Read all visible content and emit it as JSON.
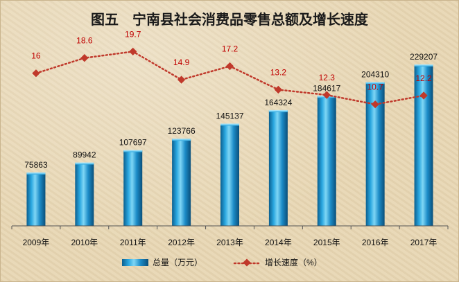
{
  "chart_data": {
    "type": "bar",
    "title": "图五　宁南县社会消费品零售总额及增长速度",
    "categories": [
      "2009年",
      "2010年",
      "2011年",
      "2012年",
      "2013年",
      "2014年",
      "2015年",
      "2016年",
      "2017年"
    ],
    "series": [
      {
        "name": "总量（万元）",
        "type": "bar",
        "values": [
          75863,
          89942,
          107697,
          123766,
          145137,
          164324,
          184617,
          204310,
          229207
        ],
        "color": "#1d8fd0"
      },
      {
        "name": "增长速度（%）",
        "type": "line",
        "values": [
          16,
          18.6,
          19.7,
          14.9,
          17.2,
          13.2,
          12.3,
          10.7,
          12.2
        ],
        "color": "#c0392b"
      }
    ],
    "bar_axis_range": [
      0,
      300000
    ],
    "line_axis_range": [
      -10,
      26
    ],
    "grid": false,
    "legend_position": "bottom"
  }
}
